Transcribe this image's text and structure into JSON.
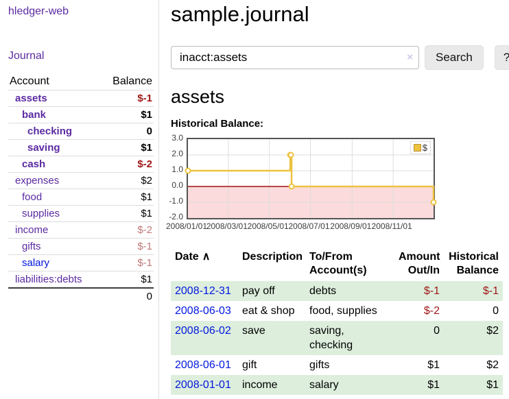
{
  "app": {
    "brand": "hledger-web",
    "nav_journal": "Journal"
  },
  "colors": {
    "accent_purple": "#5b2aa1",
    "link_blue": "#0016dd",
    "negative": "#9e1616",
    "negative_dim": "#bf7878",
    "row_stripe_green": "#ddeedd",
    "chart_line_gold": "#edc240",
    "button_bg": "#e9e9e9"
  },
  "sidebar": {
    "header": {
      "account": "Account",
      "balance": "Balance"
    },
    "rows": [
      {
        "name": "assets",
        "balance": "$-1",
        "indent": 1,
        "bold": true,
        "link": "purple",
        "balance_style": "neg"
      },
      {
        "name": "bank",
        "balance": "$1",
        "indent": 2,
        "bold": true,
        "link": "purple",
        "balance_style": "plain"
      },
      {
        "name": "checking",
        "balance": "0",
        "indent": 3,
        "bold": true,
        "link": "purple",
        "balance_style": "plain"
      },
      {
        "name": "saving",
        "balance": "$1",
        "indent": 3,
        "bold": true,
        "link": "purple",
        "balance_style": "plain"
      },
      {
        "name": "cash",
        "balance": "$-2",
        "indent": 2,
        "bold": true,
        "link": "purple",
        "balance_style": "neg"
      },
      {
        "name": "expenses",
        "balance": "$2",
        "indent": 1,
        "bold": false,
        "link": "purple",
        "balance_style": "plain"
      },
      {
        "name": "food",
        "balance": "$1",
        "indent": 2,
        "bold": false,
        "link": "purple",
        "balance_style": "plain"
      },
      {
        "name": "supplies",
        "balance": "$1",
        "indent": 2,
        "bold": false,
        "link": "purple",
        "balance_style": "plain"
      },
      {
        "name": "income",
        "balance": "$-2",
        "indent": 1,
        "bold": false,
        "link": "purple",
        "balance_style": "dimneg"
      },
      {
        "name": "gifts",
        "balance": "$-1",
        "indent": 2,
        "bold": false,
        "link": "purple",
        "balance_style": "dimneg"
      },
      {
        "name": "salary",
        "balance": "$-1",
        "indent": 2,
        "bold": false,
        "link": "blue",
        "balance_style": "dimneg"
      },
      {
        "name": "liabilities:debts",
        "balance": "$1",
        "indent": 1,
        "bold": false,
        "link": "purple",
        "balance_style": "plain"
      }
    ],
    "total": "0"
  },
  "header": {
    "title": "sample.journal"
  },
  "search": {
    "value": "inacct:assets",
    "clear_icon": "×",
    "button_label": "Search",
    "help_label": "?"
  },
  "account_page": {
    "title": "assets",
    "chart_label": "Historical Balance:"
  },
  "chart_data": {
    "type": "line",
    "step": true,
    "title": "Historical Balance",
    "xlabel": "",
    "ylabel": "",
    "series": [
      {
        "name": "$",
        "color": "#edc240",
        "points": [
          {
            "x": "2008-01-01",
            "y": 1
          },
          {
            "x": "2008-06-01",
            "y": 2
          },
          {
            "x": "2008-06-02",
            "y": 2
          },
          {
            "x": "2008-06-03",
            "y": 0
          },
          {
            "x": "2008-12-31",
            "y": -1
          }
        ]
      }
    ],
    "xlim": [
      "2008-01-01",
      "2008-12-31"
    ],
    "ylim": [
      -2,
      3
    ],
    "y_ticks": [
      3,
      2,
      1,
      0,
      -1,
      -2
    ],
    "x_ticks": [
      "2008/01/01",
      "2008/03/01",
      "2008/05/01",
      "2008/07/01",
      "2008/09/01",
      "2008/11/01"
    ],
    "grid": true,
    "legend_position": "top-right",
    "negative_region_fill": "#fbdbdb",
    "zero_line_color": "#a21010",
    "grid_color": "#dddddd"
  },
  "register": {
    "sort_icon": "∧",
    "columns": [
      {
        "label": "Date",
        "align": "left",
        "sorted": "asc"
      },
      {
        "label": "Description",
        "align": "left"
      },
      {
        "label": "To/From Account(s)",
        "align": "left"
      },
      {
        "label": "Amount Out/In",
        "align": "right"
      },
      {
        "label": "Historical Balance",
        "align": "right"
      }
    ],
    "rows": [
      {
        "date": "2008-12-31",
        "description": "pay off",
        "accounts": "debts",
        "amount": "$-1",
        "balance": "$-1"
      },
      {
        "date": "2008-06-03",
        "description": "eat & shop",
        "accounts": "food, supplies",
        "amount": "$-2",
        "balance": "0"
      },
      {
        "date": "2008-06-02",
        "description": "save",
        "accounts": "saving, checking",
        "amount": "0",
        "balance": "$2"
      },
      {
        "date": "2008-06-01",
        "description": "gift",
        "accounts": "gifts",
        "amount": "$1",
        "balance": "$2"
      },
      {
        "date": "2008-01-01",
        "description": "income",
        "accounts": "salary",
        "amount": "$1",
        "balance": "$1"
      }
    ]
  }
}
